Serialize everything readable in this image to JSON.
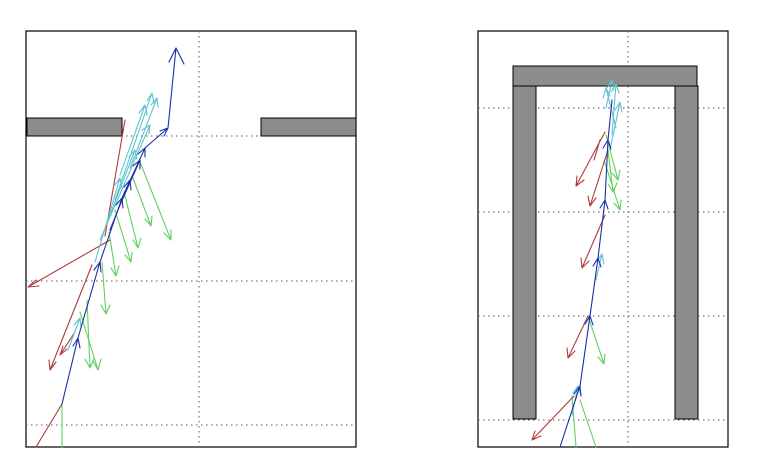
{
  "figure": {
    "panels": [
      {
        "id": "left",
        "obstacles": [
          "gap-wall-left",
          "gap-wall-right"
        ],
        "vector_sets": [
          {
            "name": "dark-blue",
            "color": "#1a2fa8"
          },
          {
            "name": "light-blue",
            "color": "#5fc3cf"
          },
          {
            "name": "red",
            "color": "#b03a3a"
          },
          {
            "name": "green",
            "color": "#5fd15f"
          }
        ]
      },
      {
        "id": "right",
        "obstacles": [
          "corridor-top-wall",
          "corridor-left-wall",
          "corridor-right-wall"
        ],
        "vector_sets": [
          {
            "name": "dark-blue",
            "color": "#1a2fa8"
          },
          {
            "name": "light-blue",
            "color": "#5fc3cf"
          },
          {
            "name": "red",
            "color": "#b03a3a"
          },
          {
            "name": "green",
            "color": "#5fd15f"
          }
        ]
      }
    ]
  }
}
